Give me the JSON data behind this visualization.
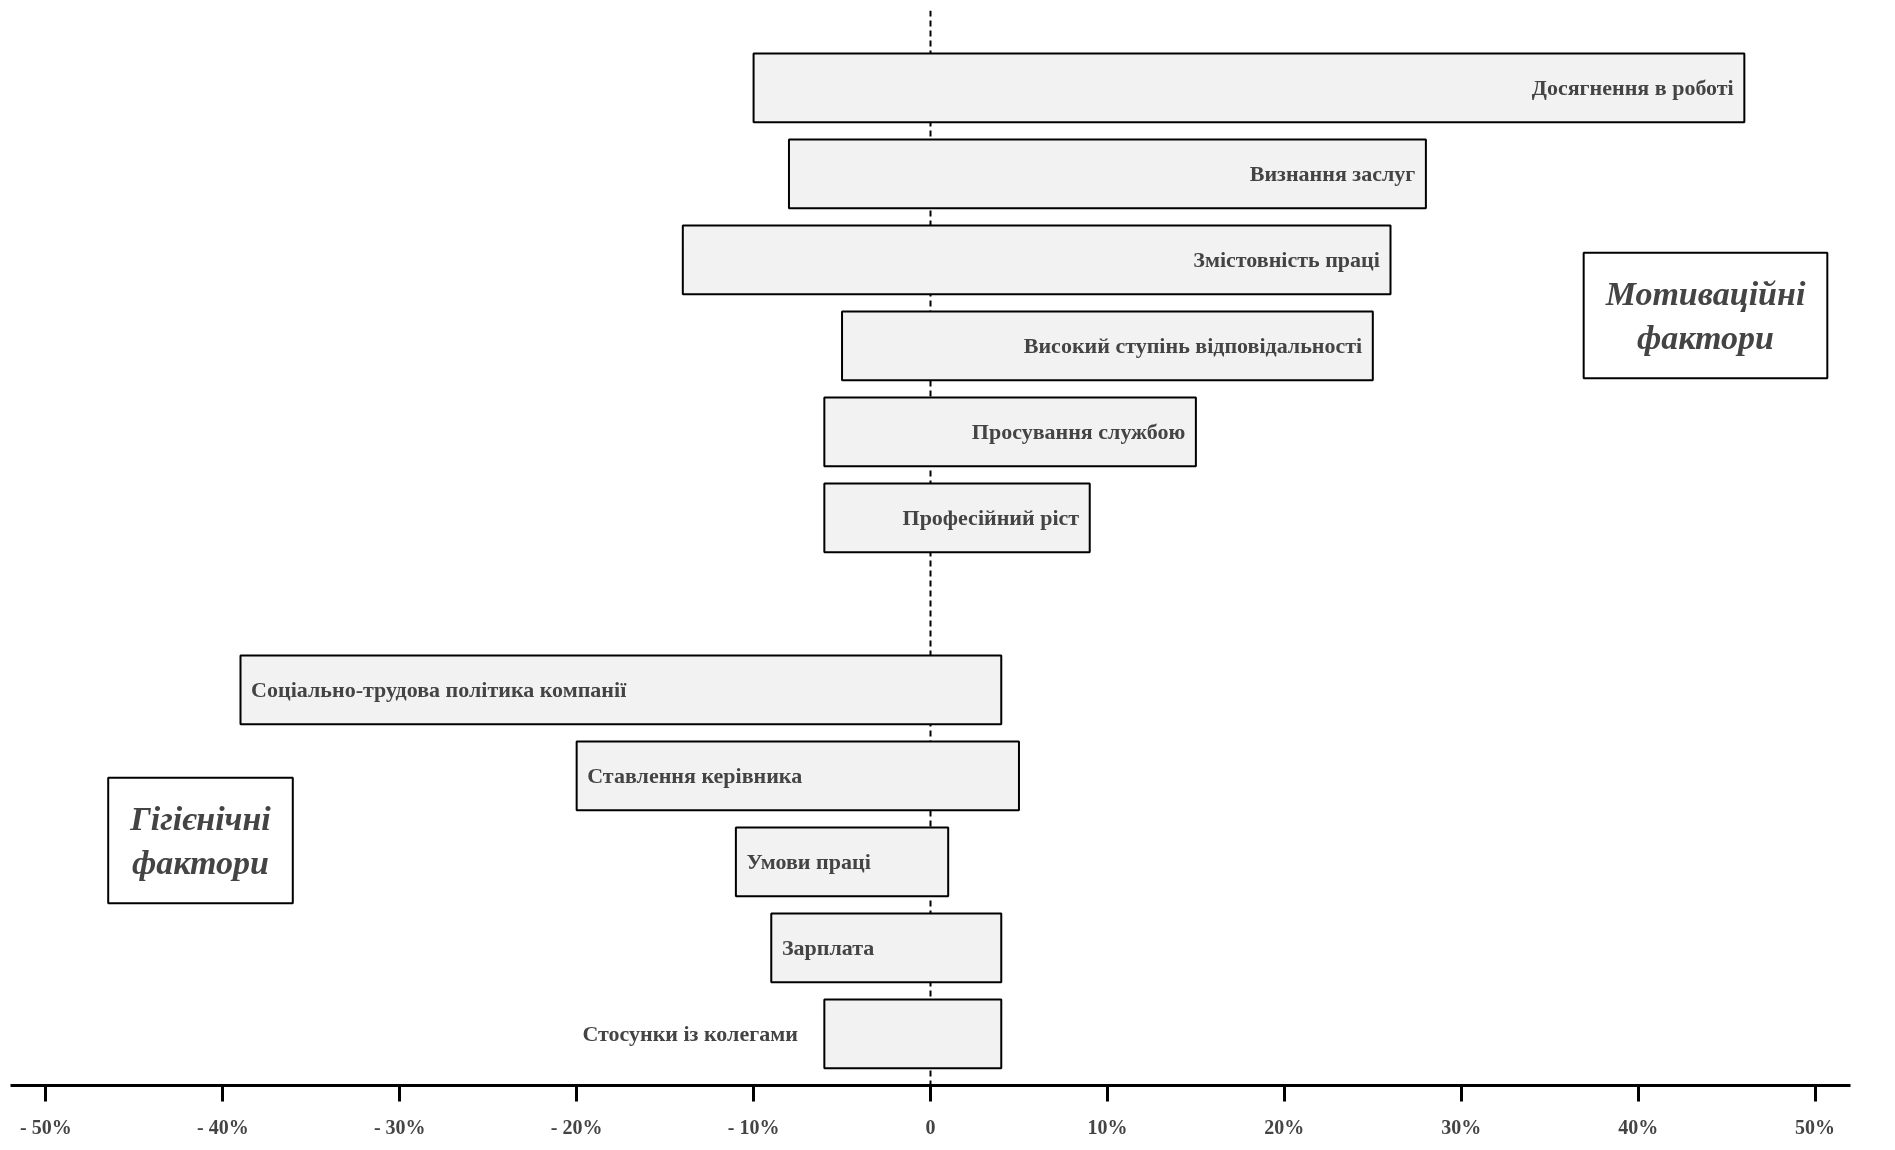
{
  "chart_data": {
    "type": "bar",
    "orientation": "horizontal",
    "categories": [
      "Досягнення в роботі",
      "Визнання заслуг",
      "Змістовність праці",
      "Високий ступінь відповідальності",
      "Просування службою",
      "Професійний ріст",
      null,
      "Соціально-трудова політика компанії",
      "Ставлення керівника",
      "Умови праці",
      "Зарплата",
      "Стосунки із колегами"
    ],
    "base": [
      -10,
      -8,
      -14,
      -5,
      -6,
      -6,
      null,
      -39,
      -20,
      -11,
      -9,
      -6
    ],
    "values": [
      56,
      36,
      40,
      30,
      21,
      15,
      null,
      43,
      25,
      12,
      13,
      10
    ],
    "color": "#f2f2f2",
    "xlim": [
      -52,
      52
    ],
    "xticks": [
      {
        "value": -50,
        "label": "- 50%"
      },
      {
        "value": -40,
        "label": "- 40%"
      },
      {
        "value": -30,
        "label": "- 30%"
      },
      {
        "value": -20,
        "label": "- 20%"
      },
      {
        "value": -10,
        "label": "- 10%"
      },
      0,
      {
        "value": 10,
        "label": "10%"
      },
      {
        "value": 20,
        "label": "20%"
      },
      {
        "value": 30,
        "label": "30%"
      },
      {
        "value": 40,
        "label": "40%"
      },
      {
        "value": 50,
        "label": "50%"
      }
    ],
    "ref_lines": [
      {
        "axis": "x",
        "value": 0,
        "label": null,
        "line_style": "dashed"
      }
    ],
    "annotations": [
      "Мотиваційні фактори",
      "Гігієнічні фактори"
    ],
    "grid": false
  }
}
